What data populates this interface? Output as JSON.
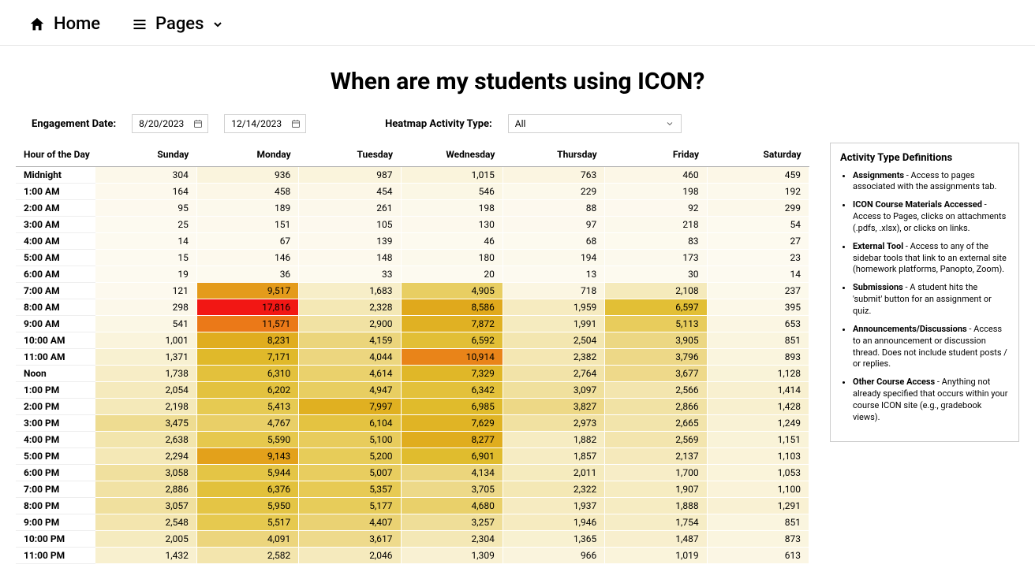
{
  "topbar": {
    "home_label": "Home",
    "pages_label": "Pages"
  },
  "page_title": "When are my students using ICON?",
  "controls": {
    "engagement_date_label": "Engagement Date:",
    "date_start": "8/20/2023",
    "date_end": "12/14/2023",
    "heatmap_type_label": "Heatmap Activity Type:",
    "heatmap_type_value": "All"
  },
  "heatmap": {
    "type": "heatmap",
    "row_header_label": "Hour of the Day",
    "day_labels": [
      "Sunday",
      "Monday",
      "Tuesday",
      "Wednesday",
      "Thursday",
      "Friday",
      "Saturday"
    ],
    "hour_labels": [
      "Midnight",
      "1:00 AM",
      "2:00 AM",
      "3:00 AM",
      "4:00 AM",
      "5:00 AM",
      "6:00 AM",
      "7:00 AM",
      "8:00 AM",
      "9:00 AM",
      "10:00 AM",
      "11:00 AM",
      "Noon",
      "1:00 PM",
      "2:00 PM",
      "3:00 PM",
      "4:00 PM",
      "5:00 PM",
      "6:00 PM",
      "7:00 PM",
      "8:00 PM",
      "9:00 PM",
      "10:00 PM",
      "11:00 PM"
    ],
    "values": [
      [
        304,
        936,
        987,
        1015,
        763,
        460,
        459
      ],
      [
        164,
        458,
        454,
        546,
        229,
        198,
        192
      ],
      [
        95,
        189,
        261,
        198,
        88,
        92,
        299
      ],
      [
        25,
        151,
        105,
        130,
        97,
        218,
        54
      ],
      [
        14,
        67,
        139,
        46,
        68,
        83,
        27
      ],
      [
        15,
        146,
        148,
        180,
        194,
        173,
        23
      ],
      [
        19,
        36,
        33,
        20,
        13,
        30,
        14
      ],
      [
        121,
        9517,
        1683,
        4905,
        718,
        2108,
        237
      ],
      [
        298,
        17816,
        2328,
        8586,
        1959,
        6597,
        395
      ],
      [
        541,
        11571,
        2900,
        7872,
        1991,
        5113,
        653
      ],
      [
        1001,
        8231,
        4159,
        6592,
        2504,
        3905,
        851
      ],
      [
        1371,
        7171,
        4044,
        10914,
        2382,
        3796,
        893
      ],
      [
        1738,
        6310,
        4614,
        7329,
        2764,
        3677,
        1128
      ],
      [
        2054,
        6202,
        4947,
        6342,
        3097,
        2566,
        1414
      ],
      [
        2198,
        5413,
        7997,
        6985,
        3827,
        2866,
        1428
      ],
      [
        3475,
        4767,
        6104,
        7629,
        2973,
        2665,
        1249
      ],
      [
        2638,
        5590,
        5100,
        8277,
        1882,
        2569,
        1151
      ],
      [
        2294,
        9143,
        5200,
        6901,
        1857,
        2137,
        1103
      ],
      [
        3058,
        5944,
        5007,
        4134,
        2011,
        1700,
        1053
      ],
      [
        2886,
        6376,
        5357,
        3705,
        2322,
        1907,
        1100
      ],
      [
        3057,
        5950,
        5177,
        4680,
        1937,
        1888,
        1291
      ],
      [
        2548,
        5517,
        4407,
        3257,
        1946,
        1754,
        851
      ],
      [
        2005,
        4091,
        3617,
        2304,
        1365,
        1487,
        873
      ],
      [
        1432,
        2582,
        2046,
        1309,
        966,
        1019,
        613
      ]
    ],
    "color_scale": {
      "stops": [
        {
          "value": 0,
          "color": "#fdfaf0"
        },
        {
          "value": 1000,
          "color": "#faf4dc"
        },
        {
          "value": 2500,
          "color": "#f3e6b0"
        },
        {
          "value": 4000,
          "color": "#ecd680"
        },
        {
          "value": 5500,
          "color": "#e6c94f"
        },
        {
          "value": 7000,
          "color": "#e0bb2c"
        },
        {
          "value": 8500,
          "color": "#e0aa1c"
        },
        {
          "value": 10000,
          "color": "#e6941a"
        },
        {
          "value": 11500,
          "color": "#eb7a18"
        },
        {
          "value": 14000,
          "color": "#ef5a16"
        },
        {
          "value": 18000,
          "color": "#f21414"
        }
      ],
      "cell_border_color": "#ffffff",
      "header_border_color": "#b0b0b0",
      "cell_font_size_px": 12,
      "cell_text_color": "#000000"
    }
  },
  "definitions": {
    "title": "Activity Type Definitions",
    "items": [
      {
        "term": "Assignments",
        "text": " - Access to pages associated with the assignments tab."
      },
      {
        "term": "ICON Course Materials Accessed",
        "text": " - Access to Pages, clicks on attachments (.pdfs, .xlsx), or clicks on links."
      },
      {
        "term": "External Tool",
        "text": " - Access to any of the sidebar tools that link to an external site (homework platforms, Panopto, Zoom)."
      },
      {
        "term": "Submissions",
        "text": " -  A student hits the 'submit' button for an assignment or quiz."
      },
      {
        "term": "Announcements/Discussions",
        "text": " - Access to an announcement or discussion thread. Does not include student posts / or replies."
      },
      {
        "term": "Other Course Access",
        "text": " - Anything not already specified that occurs within your course ICON site (e.g., gradebook views)."
      }
    ]
  }
}
